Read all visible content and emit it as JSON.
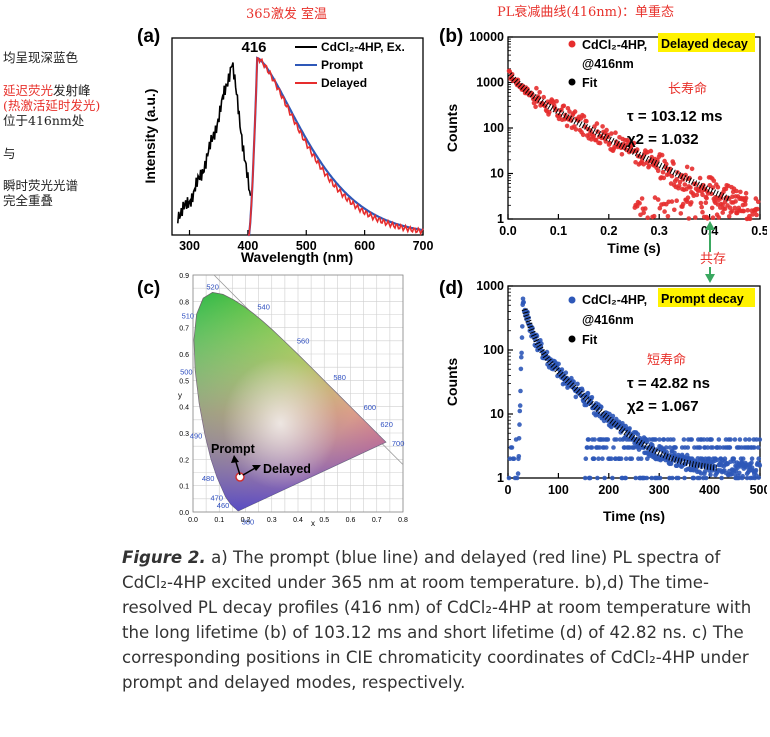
{
  "annotations": {
    "left_1": "均呈现深蓝色",
    "left_2_red1": "延迟荧光",
    "left_2_black": "发射峰",
    "left_3_red": "(热激活延时发光)",
    "left_4": "位于416nm处",
    "left_5": "与",
    "left_6": "瞬时荧光光谱",
    "left_7": "完全重叠",
    "top_a": "365激发   室温",
    "top_b": "PL衰减曲线(416nm)：单重态",
    "long_life": "长寿命",
    "short_life": "短寿命",
    "coexist": "共存"
  },
  "panel_a": {
    "label": "(a)",
    "peak_label": "416",
    "ylabel": "Intensity (a.u.)",
    "xlabel": "Wavelength (nm)",
    "xticks": [
      "300",
      "400",
      "500",
      "600",
      "700"
    ],
    "legend": [
      "CdCl₂-4HP, Ex.",
      "Prompt",
      "Delayed"
    ]
  },
  "panel_b": {
    "label": "(b)",
    "ylabel": "Counts",
    "xlabel": "Time (s)",
    "xticks": [
      "0.0",
      "0.1",
      "0.2",
      "0.3",
      "0.4",
      "0.5"
    ],
    "yticks": [
      "1",
      "10",
      "100",
      "1000",
      "10000"
    ],
    "legend_sample": "CdCl₂-4HP,",
    "legend_highlight": "Delayed decay",
    "legend_at": "@416nm",
    "legend_fit": "Fit",
    "tau": "τ = 103.12 ms",
    "chi": "χ2 = 1.032"
  },
  "panel_c": {
    "label": "(c)",
    "prompt_label": "Prompt",
    "delayed_label": "Delayed",
    "wavelengths": [
      "380",
      "460",
      "470",
      "480",
      "490",
      "500",
      "510",
      "520",
      "540",
      "560",
      "580",
      "600",
      "620",
      "700"
    ],
    "xticks": [
      "0.0",
      "0.1",
      "0.2",
      "0.3",
      "0.4",
      "0.5",
      "0.6",
      "0.7",
      "0.8"
    ],
    "yticks": [
      "0.0",
      "0.1",
      "0.2",
      "0.3",
      "0.4",
      "0.5",
      "0.6",
      "0.7",
      "0.8",
      "0.9"
    ],
    "xlabel": "x",
    "ylabel": "y"
  },
  "panel_d": {
    "label": "(d)",
    "ylabel": "Counts",
    "xlabel": "Time (ns)",
    "xticks": [
      "0",
      "100",
      "200",
      "300",
      "400",
      "500"
    ],
    "yticks": [
      "1",
      "10",
      "100",
      "1000"
    ],
    "legend_sample": "CdCl₂-4HP,",
    "legend_highlight": "Prompt decay",
    "legend_at": "@416nm",
    "legend_fit": "Fit",
    "tau": "τ = 42.82 ns",
    "chi": "χ2 = 1.067"
  },
  "caption": {
    "fig_label": "Figure 2.",
    "text": "a) The prompt (blue line) and delayed (red line) PL spectra of CdCl₂-4HP excited under 365 nm at room temperature. b),d) The time-resolved PL decay profiles (416 nm) of CdCl₂-4HP at room temperature with the long lifetime (b) of 103.12 ms and short lifetime (d) of 42.82 ns. c) The corresponding positions in CIE chromaticity coordinates of CdCl₂-4HP under prompt and delayed modes, respectively."
  },
  "chart_data": [
    {
      "type": "line",
      "panel": "a",
      "xlabel": "Wavelength (nm)",
      "ylabel": "Intensity (a.u.)",
      "xlim": [
        270,
        700
      ],
      "series": [
        {
          "name": "CdCl₂-4HP, Ex.",
          "x": [
            280,
            300,
            320,
            340,
            360,
            375,
            390,
            400
          ],
          "y": [
            0.15,
            0.3,
            0.5,
            0.75,
            0.95,
            1.0,
            0.6,
            0.25
          ]
        },
        {
          "name": "Prompt",
          "x": [
            400,
            410,
            416,
            430,
            450,
            500,
            550,
            600,
            650,
            700
          ],
          "y": [
            0.25,
            0.9,
            1.0,
            0.92,
            0.8,
            0.45,
            0.2,
            0.08,
            0.03,
            0.01
          ]
        },
        {
          "name": "Delayed",
          "x": [
            400,
            410,
            416,
            430,
            450,
            500,
            550,
            600,
            650,
            700
          ],
          "y": [
            0.25,
            0.92,
            1.0,
            0.9,
            0.78,
            0.42,
            0.18,
            0.07,
            0.03,
            0.01
          ]
        }
      ]
    },
    {
      "type": "scatter",
      "panel": "b",
      "xlabel": "Time (s)",
      "ylabel": "Counts",
      "xlim": [
        0,
        0.5
      ],
      "ylim": [
        1,
        10000
      ],
      "yscale": "log",
      "fit_tau_ms": 103.12,
      "chi2": 1.032
    },
    {
      "type": "scatter",
      "panel": "d",
      "xlabel": "Time (ns)",
      "ylabel": "Counts",
      "xlim": [
        0,
        500
      ],
      "ylim": [
        1,
        1000
      ],
      "yscale": "log",
      "fit_tau_ns": 42.82,
      "chi2": 1.067
    }
  ],
  "colors": {
    "excitation": "#000000",
    "prompt": "#2e58b8",
    "delayed": "#e62d2d",
    "annotation_red": "#e8322c",
    "highlight": "#fff200",
    "arrow_green": "#3aa860",
    "cie_tick_blue": "#3050c0"
  }
}
